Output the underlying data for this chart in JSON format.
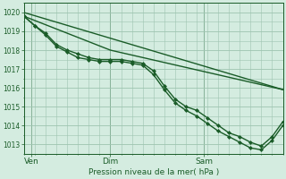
{
  "title": "",
  "xlabel": "Pression niveau de la mer( hPa )",
  "ylabel": "",
  "bg_color": "#d4ece0",
  "grid_color": "#9ec4b0",
  "line_color": "#1a5c28",
  "xlim": [
    0,
    72
  ],
  "ylim": [
    1012.5,
    1020.5
  ],
  "yticks": [
    1013,
    1014,
    1015,
    1016,
    1017,
    1018,
    1019,
    1020
  ],
  "xtick_positions": [
    2,
    24,
    50
  ],
  "xtick_labels": [
    "Ven",
    "Dim",
    "Sam"
  ],
  "vlines": [
    2,
    24,
    50
  ],
  "series": [
    {
      "x": [
        0,
        72
      ],
      "y": [
        1020.0,
        1015.9
      ],
      "marker": null,
      "lw": 1.0
    },
    {
      "x": [
        0,
        24,
        72
      ],
      "y": [
        1019.8,
        1018.0,
        1015.9
      ],
      "marker": null,
      "lw": 1.0
    },
    {
      "x": [
        0,
        3,
        6,
        9,
        12,
        15,
        18,
        21,
        24,
        27,
        30,
        33,
        36,
        39,
        42,
        45,
        48,
        51,
        54,
        57,
        60,
        63,
        66,
        69,
        72
      ],
      "y": [
        1019.8,
        1019.3,
        1018.8,
        1018.2,
        1017.9,
        1017.6,
        1017.5,
        1017.4,
        1017.4,
        1017.4,
        1017.3,
        1017.2,
        1016.7,
        1015.9,
        1015.2,
        1014.8,
        1014.5,
        1014.1,
        1013.7,
        1013.4,
        1013.1,
        1012.8,
        1012.7,
        1013.2,
        1014.0
      ],
      "marker": "D",
      "lw": 1.0
    },
    {
      "x": [
        0,
        3,
        6,
        9,
        12,
        15,
        18,
        21,
        24,
        27,
        30,
        33,
        36,
        39,
        42,
        45,
        48,
        51,
        54,
        57,
        60,
        63,
        66,
        69,
        72
      ],
      "y": [
        1019.8,
        1019.3,
        1018.9,
        1018.3,
        1018.0,
        1017.8,
        1017.6,
        1017.5,
        1017.5,
        1017.5,
        1017.4,
        1017.3,
        1016.9,
        1016.1,
        1015.4,
        1015.0,
        1014.8,
        1014.4,
        1014.0,
        1013.6,
        1013.4,
        1013.1,
        1012.9,
        1013.4,
        1014.2
      ],
      "marker": "D",
      "lw": 1.0
    }
  ]
}
